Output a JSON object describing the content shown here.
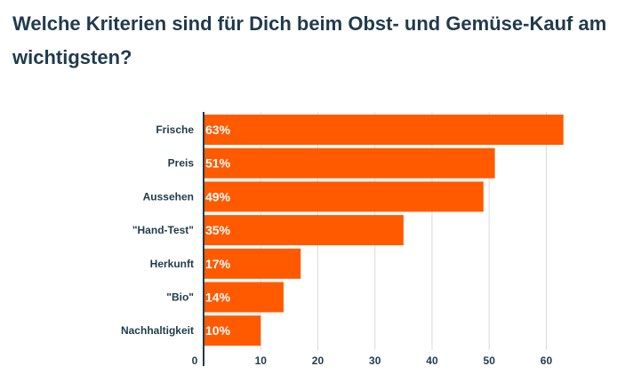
{
  "chart_data": {
    "type": "bar",
    "orientation": "horizontal",
    "title": "Welche Kriterien sind für Dich beim Obst- und Gemüse-Kauf am wichtigsten?",
    "categories": [
      "Frische",
      "Preis",
      "Aussehen",
      "\"Hand-Test\"",
      "Herkunft",
      "\"Bio\"",
      "Nachhaltigkeit"
    ],
    "values": [
      63,
      51,
      49,
      35,
      17,
      14,
      10
    ],
    "data_labels": [
      "63%",
      "51%",
      "49%",
      "35%",
      "17%",
      "14%",
      "10%"
    ],
    "xlim": [
      0,
      66
    ],
    "x_ticks": [
      0,
      10,
      20,
      30,
      40,
      50,
      60
    ],
    "grid": true,
    "bar_color": "#ff5a00",
    "text_color": "#1f3b4d",
    "grid_color": "#d9d9d9"
  }
}
